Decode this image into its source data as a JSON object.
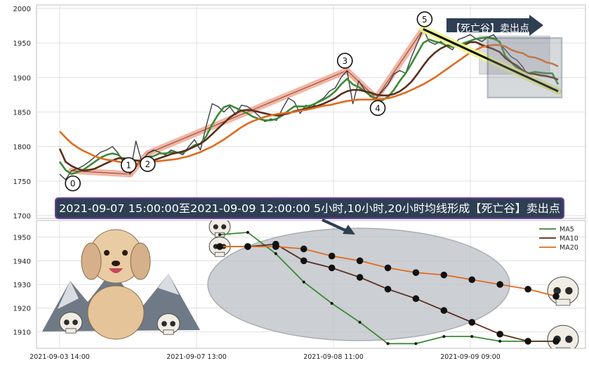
{
  "chart_data": [
    {
      "type": "line",
      "panel": "upper",
      "ylim": [
        1696,
        2005
      ],
      "yticks": [
        1700,
        1750,
        1800,
        1850,
        1900,
        1950,
        2000
      ],
      "grid": true,
      "series": [
        {
          "role": "price",
          "color": "#3a3f47",
          "values": [
            1760,
            1752,
            1765,
            1768,
            1772,
            1778,
            1785,
            1792,
            1795,
            1800,
            1790,
            1775,
            1760,
            1808,
            1778,
            1790,
            1795,
            1792,
            1788,
            1795,
            1792,
            1788,
            1800,
            1810,
            1795,
            1830,
            1862,
            1858,
            1850,
            1858,
            1846,
            1860,
            1858,
            1852,
            1844,
            1836,
            1840,
            1838,
            1855,
            1870,
            1865,
            1848,
            1860,
            1856,
            1865,
            1870,
            1880,
            1885,
            1900,
            1910,
            1862,
            1895,
            1882,
            1872,
            1870,
            1880,
            1890,
            1905,
            1910,
            1906,
            1930,
            1950,
            1970,
            1952,
            1948,
            1952,
            1945,
            1940,
            1955,
            1958,
            1962,
            1956,
            1952,
            1958,
            1962,
            1950,
            1940,
            1930,
            1925,
            1915,
            1900,
            1895,
            1890,
            1885,
            1882,
            1885
          ]
        },
        {
          "name": "MA5",
          "color": "#3a8a33",
          "values": [
            1778,
            1766,
            1760,
            1763,
            1766,
            1772,
            1778,
            1784,
            1788,
            1790,
            1788,
            1780,
            1775,
            1774,
            1778,
            1785,
            1786,
            1790,
            1790,
            1792,
            1791,
            1791,
            1796,
            1802,
            1804,
            1815,
            1832,
            1846,
            1857,
            1860,
            1856,
            1852,
            1848,
            1843,
            1840,
            1838,
            1838,
            1840,
            1845,
            1852,
            1858,
            1858,
            1858,
            1860,
            1864,
            1868,
            1873,
            1880,
            1890,
            1898,
            1890,
            1886,
            1880,
            1874,
            1868,
            1867,
            1872,
            1882,
            1895,
            1906,
            1920,
            1935,
            1950,
            1955,
            1952,
            1950,
            1946,
            1944,
            1946,
            1950,
            1953,
            1956,
            1957,
            1958,
            1956,
            1952,
            1931,
            1922,
            1914,
            1905,
            1906,
            1908,
            1907,
            1906,
            1906,
            1890
          ]
        },
        {
          "name": "MA10",
          "color": "#5a2f1d",
          "values": [
            1797,
            1778,
            1772,
            1768,
            1765,
            1766,
            1768,
            1772,
            1776,
            1780,
            1783,
            1783,
            1781,
            1780,
            1779,
            1778,
            1780,
            1783,
            1786,
            1789,
            1791,
            1793,
            1796,
            1800,
            1804,
            1810,
            1818,
            1826,
            1834,
            1842,
            1848,
            1852,
            1853,
            1852,
            1850,
            1848,
            1846,
            1845,
            1846,
            1848,
            1851,
            1853,
            1855,
            1857,
            1859,
            1862,
            1866,
            1870,
            1876,
            1880,
            1882,
            1882,
            1880,
            1878,
            1875,
            1874,
            1874,
            1876,
            1880,
            1886,
            1894,
            1905,
            1917,
            1928,
            1936,
            1942,
            1946,
            1948,
            1948,
            1947,
            1951,
            1951,
            1947,
            1944,
            1941,
            1937,
            1928,
            1922,
            1917,
            1910,
            1906,
            1905,
            1903,
            1902,
            1900,
            1897
          ]
        },
        {
          "name": "MA20",
          "color": "#e06b1f",
          "values": [
            1822,
            1813,
            1805,
            1799,
            1794,
            1790,
            1786,
            1783,
            1781,
            1780,
            1778,
            1777,
            1776,
            1775,
            1776,
            1777,
            1778,
            1779,
            1780,
            1781,
            1782,
            1784,
            1786,
            1789,
            1792,
            1796,
            1800,
            1805,
            1810,
            1816,
            1822,
            1828,
            1833,
            1837,
            1840,
            1843,
            1845,
            1847,
            1848,
            1849,
            1850,
            1852,
            1853,
            1855,
            1857,
            1859,
            1860,
            1862,
            1864,
            1866,
            1867,
            1868,
            1868,
            1868,
            1868,
            1869,
            1870,
            1872,
            1875,
            1878,
            1882,
            1886,
            1890,
            1895,
            1900,
            1906,
            1912,
            1918,
            1924,
            1930,
            1936,
            1940,
            1944,
            1946,
            1947,
            1947,
            1945,
            1940,
            1937,
            1935,
            1930,
            1929,
            1926,
            1922,
            1920,
            1916
          ]
        }
      ],
      "wave_points": [
        {
          "label": "0",
          "index": 2
        },
        {
          "label": "1",
          "index": 12
        },
        {
          "label": "2",
          "index": 15
        },
        {
          "label": "3",
          "index": 49
        },
        {
          "label": "4",
          "index": 54
        },
        {
          "label": "5",
          "index": 62
        }
      ],
      "annotation": "【死亡谷】卖出点",
      "highlight_rect_window": [
        73,
        85
      ],
      "banner": "2021-09-07 15:00:00至2021-09-09 12:00:00 5小时,10小时,20小时均线形成【死亡谷】卖出点"
    },
    {
      "type": "line",
      "panel": "lower",
      "ylim": [
        1903,
        1957
      ],
      "yticks": [
        1910,
        1920,
        1930,
        1940,
        1950
      ],
      "xticks": [
        "2021-09-03 14:00",
        "2021-09-07 13:00",
        "2021-09-08 11:00",
        "2021-09-09 09:00"
      ],
      "legend": "top-right",
      "grid": true,
      "series": [
        {
          "name": "MA5",
          "color": "#3a8a33",
          "values": [
            1951,
            1952,
            1943,
            1931,
            1922,
            1914,
            1905,
            1905,
            1908,
            1908,
            1906,
            1906,
            1906
          ]
        },
        {
          "name": "MA10",
          "color": "#5a2f1d",
          "values": [
            1946,
            1946,
            1947,
            1940,
            1937,
            1933,
            1928,
            1924,
            1919,
            1914,
            1909,
            1906,
            1906
          ]
        },
        {
          "name": "MA20",
          "color": "#e06b1f",
          "values": [
            1946,
            1946,
            1946,
            1945,
            1942,
            1940,
            1937,
            1935,
            1934,
            1932,
            1930,
            1928,
            1925
          ]
        }
      ]
    }
  ],
  "colors": {
    "price": "#3a3f47",
    "ma5": "#3a8a33",
    "ma10": "#5a2f1d",
    "ma20": "#e06b1f",
    "wave_band": "#f3a793",
    "banner_bg": "#2e3f52",
    "banner_border": "#6a3fa0",
    "ellipse_fill": "#bcc0c6",
    "trend_glow": "#eef58a"
  },
  "icons": [
    "poodle-mascot",
    "mountain-icon",
    "skull-icon"
  ]
}
